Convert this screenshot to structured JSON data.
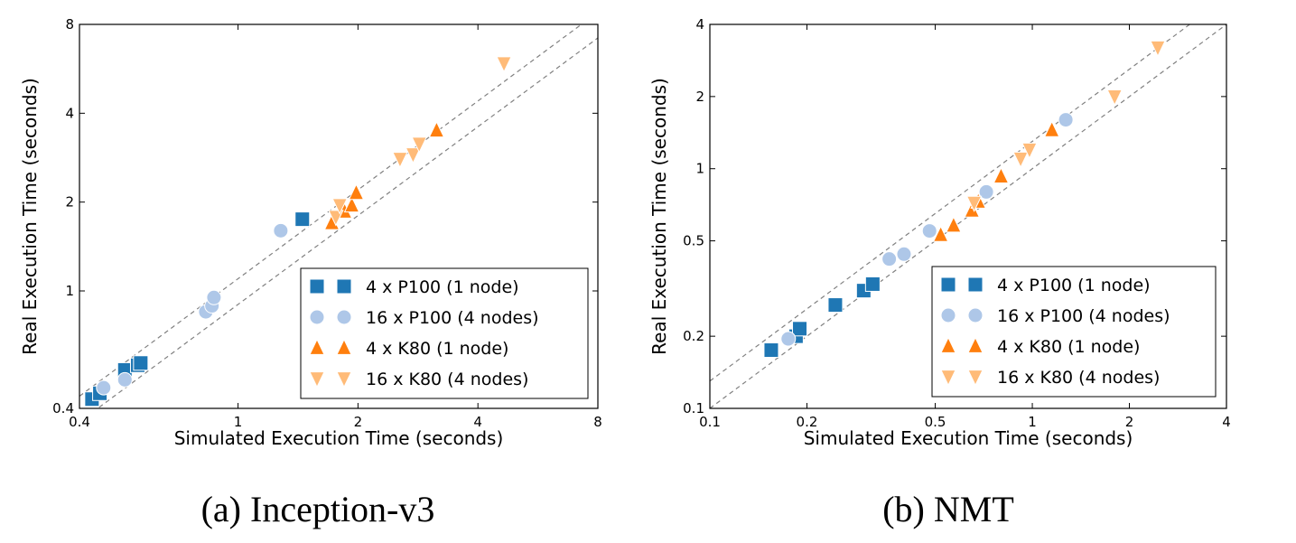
{
  "chart_data": [
    {
      "type": "scatter",
      "scale": "log-log",
      "title": "",
      "caption": "(a) Inception-v3",
      "xlabel": "Simulated Execution Time (seconds)",
      "ylabel": "Real Execution Time (seconds)",
      "xlim": [
        0.4,
        8
      ],
      "ylim": [
        0.4,
        8
      ],
      "xticks": [
        0.4,
        1,
        2,
        4,
        8
      ],
      "xtick_labels": [
        "0.4",
        "1",
        "2",
        "4",
        "8"
      ],
      "yticks": [
        0.4,
        1,
        2,
        4,
        8
      ],
      "ytick_labels": [
        "0.4",
        "1",
        "2",
        "4",
        "8"
      ],
      "grid": false,
      "legend_position": "bottom-right",
      "reference_lines": [
        {
          "style": "dashed",
          "slope": 1,
          "factor": 1.1
        },
        {
          "style": "dashed",
          "slope": 1,
          "factor": 0.9
        }
      ],
      "series": [
        {
          "name": "4 x P100 (1 node)",
          "marker": "square",
          "color": "#1f77b4",
          "points": [
            [
              0.43,
              0.43
            ],
            [
              0.45,
              0.45
            ],
            [
              0.52,
              0.54
            ],
            [
              0.56,
              0.56
            ],
            [
              0.57,
              0.57
            ],
            [
              1.45,
              1.75
            ]
          ]
        },
        {
          "name": "16 x P100 (4 nodes)",
          "marker": "circle",
          "color": "#aec7e8",
          "points": [
            [
              0.46,
              0.47
            ],
            [
              0.52,
              0.5
            ],
            [
              0.83,
              0.85
            ],
            [
              0.86,
              0.89
            ],
            [
              0.87,
              0.95
            ],
            [
              1.28,
              1.6
            ]
          ]
        },
        {
          "name": "4 x K80 (1 node)",
          "marker": "triangle-up",
          "color": "#ff7f0e",
          "points": [
            [
              1.72,
              1.7
            ],
            [
              1.85,
              1.86
            ],
            [
              1.93,
              1.95
            ],
            [
              1.98,
              2.15
            ],
            [
              3.15,
              3.5
            ]
          ]
        },
        {
          "name": "16 x K80 (4 nodes)",
          "marker": "triangle-down",
          "color": "#ffbb78",
          "points": [
            [
              1.76,
              1.78
            ],
            [
              1.8,
              1.95
            ],
            [
              2.55,
              2.8
            ],
            [
              2.75,
              2.9
            ],
            [
              2.85,
              3.15
            ],
            [
              4.65,
              5.9
            ]
          ]
        }
      ]
    },
    {
      "type": "scatter",
      "scale": "log-log",
      "title": "",
      "caption": "(b) NMT",
      "xlabel": "Simulated Execution Time (seconds)",
      "ylabel": "Real Execution Time (seconds)",
      "xlim": [
        0.1,
        4
      ],
      "ylim": [
        0.1,
        4
      ],
      "xticks": [
        0.1,
        0.2,
        0.5,
        1,
        2,
        4
      ],
      "xtick_labels": [
        "0.1",
        "0.2",
        "0.5",
        "1",
        "2",
        "4"
      ],
      "yticks": [
        0.1,
        0.2,
        0.5,
        1,
        2,
        4
      ],
      "ytick_labels": [
        "0.1",
        "0.2",
        "0.5",
        "1",
        "2",
        "4"
      ],
      "grid": false,
      "legend_position": "bottom-right",
      "reference_lines": [
        {
          "style": "dashed",
          "slope": 1,
          "factor": 1.3
        },
        {
          "style": "dashed",
          "slope": 1,
          "factor": 1.0
        }
      ],
      "series": [
        {
          "name": "4 x P100 (1 node)",
          "marker": "square",
          "color": "#1f77b4",
          "points": [
            [
              0.155,
              0.175
            ],
            [
              0.185,
              0.2
            ],
            [
              0.19,
              0.215
            ],
            [
              0.245,
              0.27
            ],
            [
              0.3,
              0.31
            ],
            [
              0.32,
              0.33
            ]
          ]
        },
        {
          "name": "16 x P100 (4 nodes)",
          "marker": "circle",
          "color": "#aec7e8",
          "points": [
            [
              0.175,
              0.195
            ],
            [
              0.36,
              0.42
            ],
            [
              0.4,
              0.44
            ],
            [
              0.48,
              0.55
            ],
            [
              0.72,
              0.8
            ],
            [
              1.27,
              1.6
            ]
          ]
        },
        {
          "name": "4 x K80 (1 node)",
          "marker": "triangle-up",
          "color": "#ff7f0e",
          "points": [
            [
              0.52,
              0.53
            ],
            [
              0.57,
              0.58
            ],
            [
              0.65,
              0.67
            ],
            [
              0.68,
              0.73
            ],
            [
              0.8,
              0.93
            ],
            [
              1.15,
              1.45
            ]
          ]
        },
        {
          "name": "16 x K80 (4 nodes)",
          "marker": "triangle-down",
          "color": "#ffbb78",
          "points": [
            [
              0.66,
              0.72
            ],
            [
              0.92,
              1.1
            ],
            [
              0.98,
              1.2
            ],
            [
              1.8,
              2.0
            ],
            [
              2.45,
              3.2
            ]
          ]
        }
      ]
    }
  ]
}
